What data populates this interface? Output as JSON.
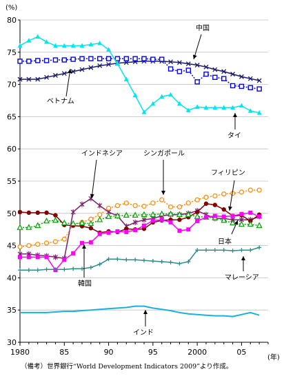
{
  "chart_data": {
    "type": "line",
    "title": "",
    "ylabel": "(%)",
    "xlabel": "",
    "x_unit_label": "(年)",
    "ylim": [
      30,
      80
    ],
    "xlim": [
      1980,
      2008
    ],
    "y_ticks": [
      30,
      35,
      40,
      45,
      50,
      55,
      60,
      65,
      70,
      75,
      80
    ],
    "x_ticks": [
      {
        "value": 1980,
        "label": "1980"
      },
      {
        "value": 1985,
        "label": "85"
      },
      {
        "value": 1990,
        "label": "90"
      },
      {
        "value": 1995,
        "label": "95"
      },
      {
        "value": 2000,
        "label": "2000"
      },
      {
        "value": 2005,
        "label": "05"
      }
    ],
    "x": [
      1980,
      1981,
      1982,
      1983,
      1984,
      1985,
      1986,
      1987,
      1988,
      1989,
      1990,
      1991,
      1992,
      1993,
      1994,
      1995,
      1996,
      1997,
      1998,
      1999,
      2000,
      2001,
      2002,
      2003,
      2004,
      2005,
      2006,
      2007
    ],
    "series": [
      {
        "name": "中国",
        "color": "#1a1a66",
        "marker": "x",
        "dash": "solid",
        "values": [
          70.8,
          70.8,
          70.8,
          71.1,
          71.4,
          71.7,
          72.0,
          72.3,
          72.6,
          72.9,
          73.1,
          73.3,
          73.4,
          73.5,
          73.6,
          73.6,
          73.6,
          73.5,
          73.4,
          73.2,
          73.0,
          72.7,
          72.3,
          72.0,
          71.6,
          71.2,
          70.9,
          70.6
        ]
      },
      {
        "name": "ベトナム",
        "color": "#0000ee",
        "marker": "square-open",
        "dash": "dotted",
        "values": [
          73.6,
          73.6,
          73.7,
          73.7,
          73.8,
          73.8,
          73.9,
          74.0,
          74.0,
          74.0,
          74.0,
          74.0,
          74.0,
          74.0,
          74.0,
          73.9,
          73.9,
          72.4,
          72.0,
          72.2,
          70.4,
          71.6,
          71.1,
          70.9,
          69.8,
          69.7,
          69.5,
          69.3
        ]
      },
      {
        "name": "タイ",
        "color": "#00e5ee",
        "marker": "triangle",
        "dash": "solid",
        "values": [
          76.0,
          76.8,
          77.4,
          76.6,
          76.0,
          76.0,
          76.0,
          76.0,
          76.2,
          76.4,
          75.4,
          73.2,
          70.8,
          68.3,
          65.7,
          67.0,
          68.1,
          68.4,
          67.0,
          66.0,
          66.5,
          66.4,
          66.4,
          66.4,
          66.4,
          66.7,
          65.9,
          65.6
        ]
      },
      {
        "name": "インドネシア",
        "color": "#7a1f6b",
        "marker": "star",
        "dash": "solid",
        "values": [
          43.7,
          43.7,
          43.5,
          43.4,
          43.2,
          43.0,
          50.2,
          51.4,
          52.3,
          51.2,
          50.2,
          49.6,
          48.0,
          48.6,
          49.0,
          49.2,
          49.6,
          49.8,
          49.8,
          50.0,
          50.4,
          49.8,
          49.2,
          49.2,
          49.0,
          49.0,
          49.0,
          49.5
        ]
      },
      {
        "name": "シンガポール",
        "color": "#ff8800",
        "marker": "circle-open",
        "dash": "dotted",
        "values": [
          44.8,
          45.0,
          45.2,
          45.4,
          45.6,
          46.0,
          48.2,
          48.6,
          49.1,
          49.8,
          50.8,
          51.2,
          51.6,
          51.2,
          51.1,
          51.6,
          52.1,
          51.0,
          51.0,
          51.6,
          52.1,
          52.5,
          52.7,
          53.0,
          53.1,
          53.3,
          53.6,
          53.6
        ]
      },
      {
        "name": "日本",
        "color": "#800000",
        "marker": "circle",
        "dash": "solid",
        "values": [
          50.2,
          50.1,
          50.1,
          50.1,
          49.7,
          48.2,
          48.1,
          48.0,
          47.7,
          47.0,
          47.2,
          47.1,
          47.6,
          47.5,
          47.6,
          48.6,
          48.9,
          49.0,
          49.0,
          49.4,
          50.2,
          51.5,
          51.3,
          50.6,
          49.6,
          49.7,
          48.8,
          49.8
        ]
      },
      {
        "name": "フィリピン",
        "color": "#00a000",
        "marker": "triangle-open",
        "dash": "dotted",
        "values": [
          47.8,
          47.8,
          48.1,
          48.8,
          48.9,
          48.5,
          48.4,
          48.5,
          48.4,
          49.0,
          49.5,
          49.6,
          49.7,
          49.7,
          49.8,
          49.8,
          49.9,
          49.9,
          49.8,
          49.8,
          49.5,
          49.4,
          49.3,
          48.9,
          48.5,
          48.3,
          48.3,
          48.1
        ]
      },
      {
        "name": "韓国",
        "color": "#ff00ff",
        "marker": "square",
        "dash": "solid",
        "values": [
          43.2,
          43.2,
          43.2,
          43.2,
          41.2,
          42.8,
          43.8,
          45.4,
          45.5,
          46.8,
          47.0,
          47.2,
          47.1,
          47.4,
          48.1,
          48.9,
          49.0,
          48.6,
          47.3,
          47.5,
          48.8,
          49.4,
          49.6,
          49.5,
          49.6,
          49.9,
          50.1,
          49.5
        ]
      },
      {
        "name": "マレーシア",
        "color": "#2e8b8b",
        "marker": "plus",
        "dash": "solid",
        "values": [
          41.2,
          41.2,
          41.2,
          41.3,
          41.3,
          41.3,
          41.4,
          41.4,
          41.6,
          42.1,
          42.9,
          42.9,
          42.8,
          42.8,
          42.7,
          42.6,
          42.5,
          42.4,
          42.2,
          42.5,
          44.3,
          44.3,
          44.3,
          44.3,
          44.2,
          44.3,
          44.3,
          44.7
        ]
      },
      {
        "name": "インド",
        "color": "#1ab0dd",
        "marker": "none",
        "dash": "solid",
        "values": [
          34.6,
          34.6,
          34.6,
          34.6,
          34.7,
          34.8,
          34.8,
          34.9,
          35.0,
          35.1,
          35.2,
          35.3,
          35.4,
          35.6,
          35.6,
          35.3,
          35.1,
          34.9,
          34.6,
          34.4,
          34.3,
          34.2,
          34.1,
          34.1,
          34.0,
          34.3,
          34.6,
          34.2
        ]
      }
    ],
    "annotations": [
      {
        "text": "中国",
        "name": "label-china"
      },
      {
        "text": "ベトナム",
        "name": "label-vietnam"
      },
      {
        "text": "タイ",
        "name": "label-thailand"
      },
      {
        "text": "インドネシア",
        "name": "label-indonesia"
      },
      {
        "text": "シンガポール",
        "name": "label-singapore"
      },
      {
        "text": "フィリピン",
        "name": "label-philippines"
      },
      {
        "text": "日本",
        "name": "label-japan"
      },
      {
        "text": "韓国",
        "name": "label-korea"
      },
      {
        "text": "マレーシア",
        "name": "label-malaysia"
      },
      {
        "text": "インド",
        "name": "label-india"
      }
    ],
    "source_note": "（備考）世界銀行“World Development Indicators 2009”より作成。"
  }
}
